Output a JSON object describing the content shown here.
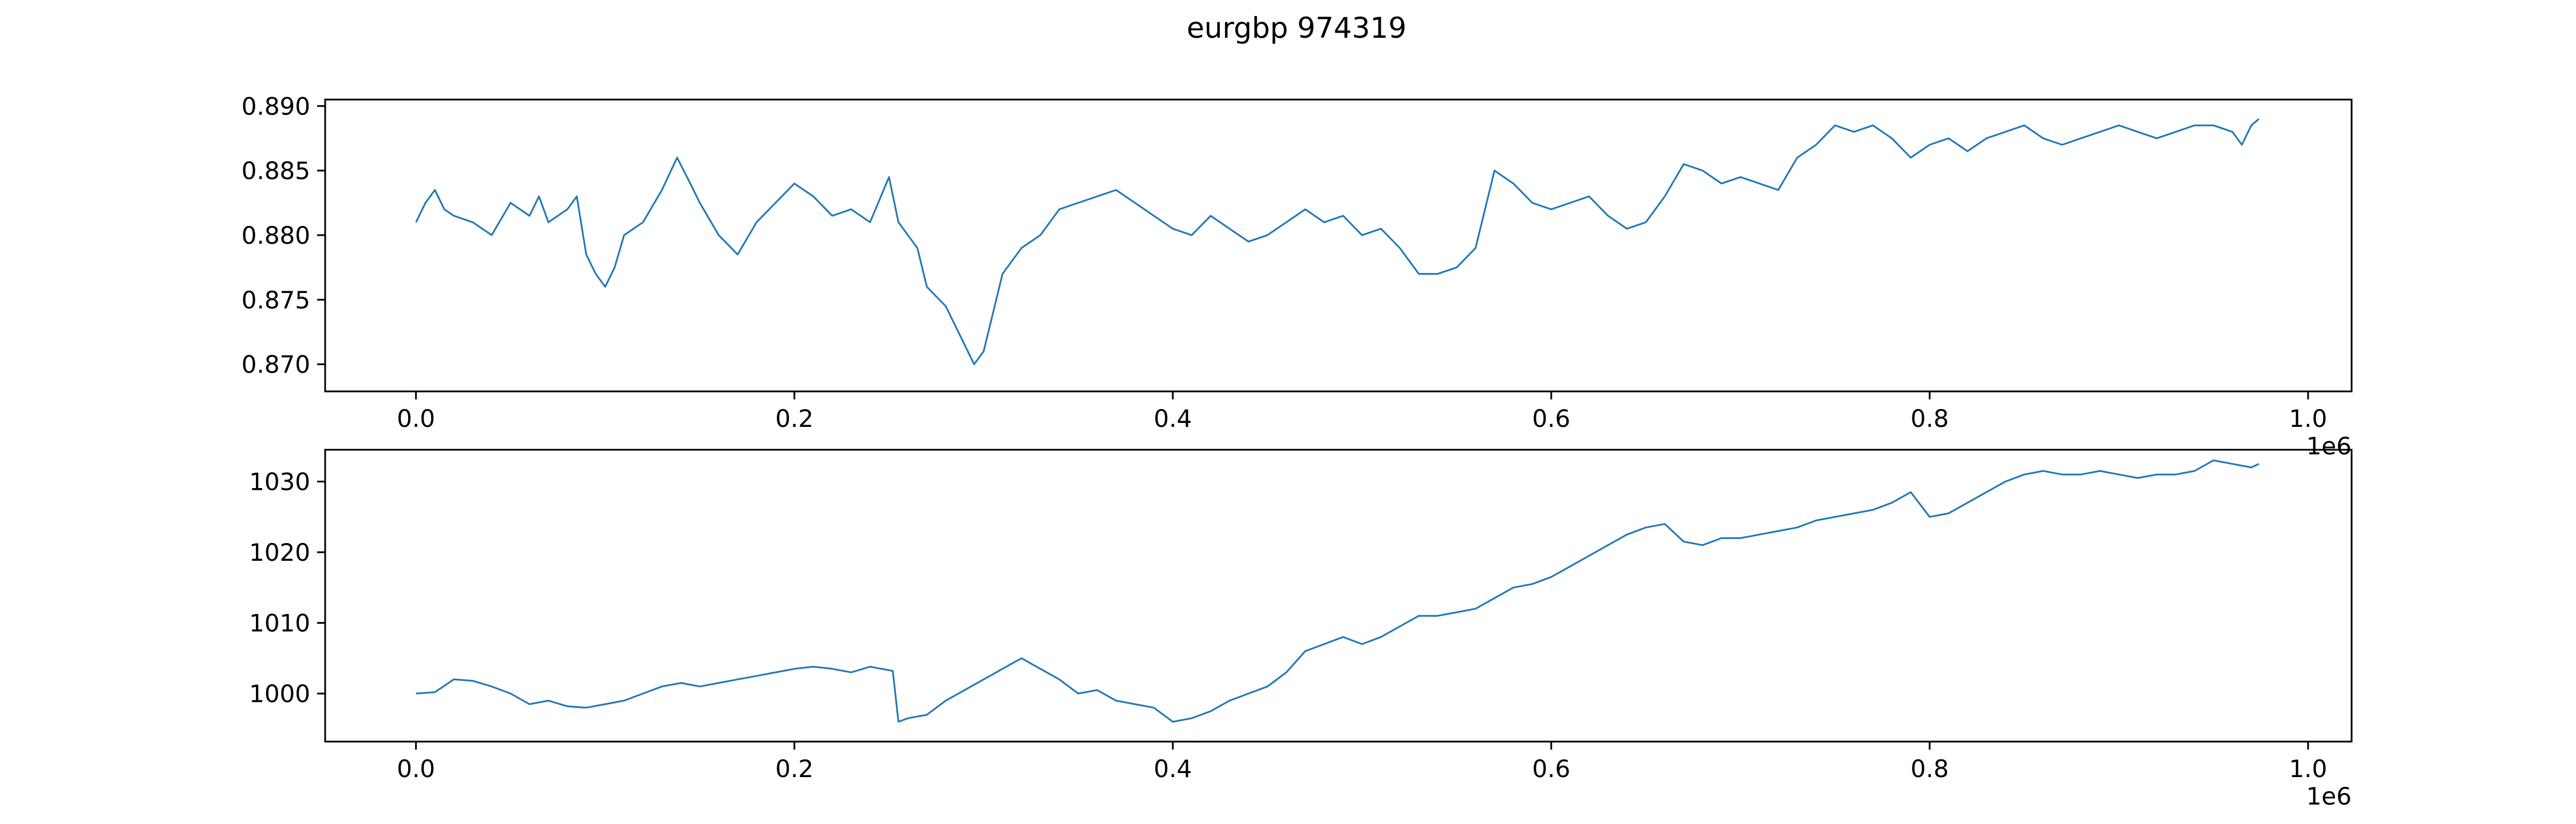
{
  "figure": {
    "title": "eurgbp  974319"
  },
  "chart_data": [
    {
      "type": "line",
      "title": "",
      "xlabel": "",
      "ylabel": "",
      "x_offset_label": "1e6",
      "xlim": [
        -0.048,
        1.023
      ],
      "ylim": [
        0.8679,
        0.8905
      ],
      "xticks": [
        0.0,
        0.2,
        0.4,
        0.6,
        0.8,
        1.0
      ],
      "xtick_labels": [
        "0.0",
        "0.2",
        "0.4",
        "0.6",
        "0.8",
        "1.0"
      ],
      "yticks": [
        0.87,
        0.875,
        0.88,
        0.885,
        0.89
      ],
      "ytick_labels": [
        "0.870",
        "0.875",
        "0.880",
        "0.885",
        "0.890"
      ],
      "grid": false,
      "legend": "none",
      "series": [
        {
          "color": "#1f77b4",
          "x": [
            0.0,
            0.005,
            0.01,
            0.015,
            0.02,
            0.03,
            0.04,
            0.05,
            0.06,
            0.065,
            0.07,
            0.08,
            0.085,
            0.09,
            0.095,
            0.1,
            0.105,
            0.11,
            0.12,
            0.13,
            0.138,
            0.145,
            0.15,
            0.16,
            0.17,
            0.18,
            0.19,
            0.2,
            0.21,
            0.22,
            0.23,
            0.24,
            0.25,
            0.255,
            0.26,
            0.265,
            0.27,
            0.28,
            0.29,
            0.295,
            0.3,
            0.305,
            0.31,
            0.32,
            0.33,
            0.34,
            0.35,
            0.36,
            0.37,
            0.38,
            0.39,
            0.4,
            0.41,
            0.42,
            0.43,
            0.44,
            0.45,
            0.46,
            0.47,
            0.48,
            0.49,
            0.5,
            0.51,
            0.52,
            0.53,
            0.54,
            0.55,
            0.56,
            0.57,
            0.58,
            0.59,
            0.6,
            0.61,
            0.62,
            0.63,
            0.64,
            0.65,
            0.66,
            0.67,
            0.68,
            0.69,
            0.7,
            0.71,
            0.72,
            0.73,
            0.74,
            0.75,
            0.76,
            0.77,
            0.78,
            0.79,
            0.8,
            0.81,
            0.82,
            0.83,
            0.84,
            0.85,
            0.86,
            0.87,
            0.88,
            0.89,
            0.9,
            0.91,
            0.92,
            0.93,
            0.94,
            0.95,
            0.96,
            0.965,
            0.97,
            0.974
          ],
          "values": [
            0.881,
            0.8825,
            0.8835,
            0.882,
            0.8815,
            0.881,
            0.88,
            0.8825,
            0.8815,
            0.883,
            0.881,
            0.882,
            0.883,
            0.8785,
            0.877,
            0.876,
            0.8775,
            0.88,
            0.881,
            0.8835,
            0.886,
            0.884,
            0.8825,
            0.88,
            0.8785,
            0.881,
            0.8825,
            0.884,
            0.883,
            0.8815,
            0.882,
            0.881,
            0.8845,
            0.881,
            0.88,
            0.879,
            0.876,
            0.8745,
            0.8715,
            0.87,
            0.871,
            0.874,
            0.877,
            0.879,
            0.88,
            0.882,
            0.8825,
            0.883,
            0.8835,
            0.8825,
            0.8815,
            0.8805,
            0.88,
            0.8815,
            0.8805,
            0.8795,
            0.88,
            0.881,
            0.882,
            0.881,
            0.8815,
            0.88,
            0.8805,
            0.879,
            0.877,
            0.877,
            0.8775,
            0.879,
            0.885,
            0.884,
            0.8825,
            0.882,
            0.8825,
            0.883,
            0.8815,
            0.8805,
            0.881,
            0.883,
            0.8855,
            0.885,
            0.884,
            0.8845,
            0.884,
            0.8835,
            0.886,
            0.887,
            0.8885,
            0.888,
            0.8885,
            0.8875,
            0.886,
            0.887,
            0.8875,
            0.8865,
            0.8875,
            0.888,
            0.8885,
            0.8875,
            0.887,
            0.8875,
            0.888,
            0.8885,
            0.888,
            0.8875,
            0.888,
            0.8885,
            0.8885,
            0.888,
            0.887,
            0.8885,
            0.889
          ]
        }
      ]
    },
    {
      "type": "line",
      "title": "",
      "xlabel": "",
      "ylabel": "",
      "x_offset_label": "1e6",
      "xlim": [
        -0.048,
        1.023
      ],
      "ylim": [
        993.2,
        1034.5
      ],
      "xticks": [
        0.0,
        0.2,
        0.4,
        0.6,
        0.8,
        1.0
      ],
      "xtick_labels": [
        "0.0",
        "0.2",
        "0.4",
        "0.6",
        "0.8",
        "1.0"
      ],
      "yticks": [
        1000,
        1010,
        1020,
        1030
      ],
      "ytick_labels": [
        "1000",
        "1010",
        "1020",
        "1030"
      ],
      "grid": false,
      "legend": "none",
      "series": [
        {
          "color": "#1f77b4",
          "x": [
            0.0,
            0.01,
            0.02,
            0.03,
            0.04,
            0.05,
            0.06,
            0.07,
            0.08,
            0.09,
            0.1,
            0.11,
            0.12,
            0.13,
            0.14,
            0.15,
            0.16,
            0.17,
            0.18,
            0.19,
            0.2,
            0.21,
            0.22,
            0.23,
            0.24,
            0.252,
            0.255,
            0.26,
            0.27,
            0.28,
            0.29,
            0.3,
            0.31,
            0.32,
            0.33,
            0.34,
            0.35,
            0.36,
            0.37,
            0.38,
            0.39,
            0.4,
            0.41,
            0.42,
            0.43,
            0.44,
            0.45,
            0.46,
            0.47,
            0.48,
            0.49,
            0.5,
            0.51,
            0.52,
            0.53,
            0.54,
            0.55,
            0.56,
            0.57,
            0.58,
            0.59,
            0.6,
            0.61,
            0.62,
            0.63,
            0.64,
            0.65,
            0.66,
            0.67,
            0.68,
            0.69,
            0.7,
            0.71,
            0.72,
            0.73,
            0.74,
            0.75,
            0.76,
            0.77,
            0.78,
            0.79,
            0.8,
            0.81,
            0.82,
            0.83,
            0.84,
            0.85,
            0.86,
            0.87,
            0.88,
            0.89,
            0.9,
            0.91,
            0.92,
            0.93,
            0.94,
            0.95,
            0.96,
            0.97,
            0.974
          ],
          "values": [
            1000.0,
            1000.2,
            1002.0,
            1001.8,
            1001.0,
            1000.0,
            998.5,
            999.0,
            998.2,
            998.0,
            998.5,
            999.0,
            1000.0,
            1001.0,
            1001.5,
            1001.0,
            1001.5,
            1002.0,
            1002.5,
            1003.0,
            1003.5,
            1003.8,
            1003.5,
            1003.0,
            1003.8,
            1003.2,
            996.0,
            996.5,
            997.0,
            999.0,
            1000.5,
            1002.0,
            1003.5,
            1005.0,
            1003.5,
            1002.0,
            1000.0,
            1000.5,
            999.0,
            998.5,
            998.0,
            996.0,
            996.5,
            997.5,
            999.0,
            1000.0,
            1001.0,
            1003.0,
            1006.0,
            1007.0,
            1008.0,
            1007.0,
            1008.0,
            1009.5,
            1011.0,
            1011.0,
            1011.5,
            1012.0,
            1013.5,
            1015.0,
            1015.5,
            1016.5,
            1018.0,
            1019.5,
            1021.0,
            1022.5,
            1023.5,
            1024.0,
            1021.5,
            1021.0,
            1022.0,
            1022.0,
            1022.5,
            1023.0,
            1023.5,
            1024.5,
            1025.0,
            1025.5,
            1026.0,
            1027.0,
            1028.5,
            1025.0,
            1025.5,
            1027.0,
            1028.5,
            1030.0,
            1031.0,
            1031.5,
            1031.0,
            1031.0,
            1031.5,
            1031.0,
            1030.5,
            1031.0,
            1031.0,
            1031.5,
            1033.0,
            1032.5,
            1032.0,
            1032.5
          ]
        }
      ]
    }
  ]
}
